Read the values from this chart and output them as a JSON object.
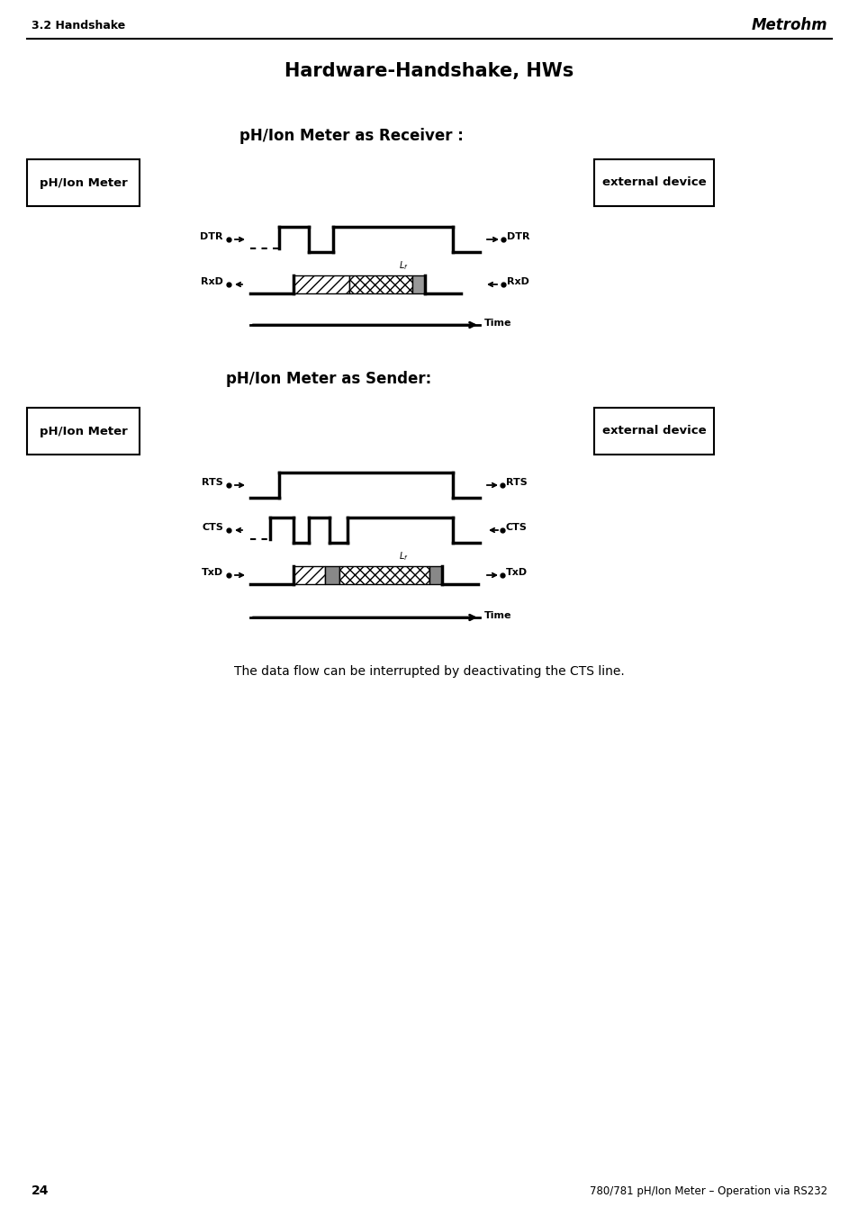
{
  "page_title": "Hardware-Handshake, HWs",
  "header_left": "3.2 Handshake",
  "header_right": "Metrohm",
  "section1_title": "pH/Ion Meter as Receiver :",
  "section2_title": "pH/Ion Meter as Sender:",
  "box_left": "pH/Ion Meter",
  "box_right": "external device",
  "footer_text": "The data flow can be interrupted by deactivating the CTS line.",
  "page_num": "24",
  "bottom_right": "780/781 pH/Ion Meter – Operation via RS232",
  "bg_color": "#ffffff",
  "line_color": "#000000"
}
